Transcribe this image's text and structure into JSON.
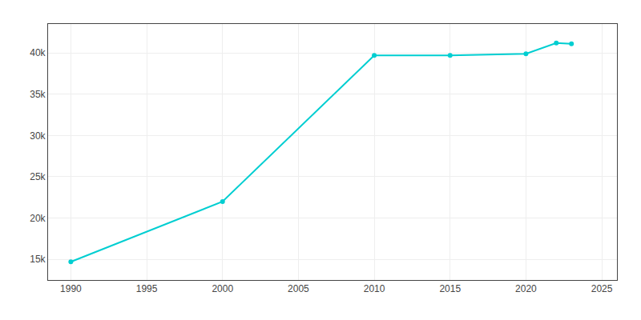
{
  "chart_data": {
    "type": "line",
    "x": [
      1990,
      2000,
      2010,
      2015,
      2020,
      2022,
      2023
    ],
    "values": [
      14700,
      22000,
      39700,
      39700,
      39900,
      41200,
      41100
    ],
    "color": "#00CED1",
    "marker": "circle",
    "line_style": "solid",
    "xlim": [
      1988.5,
      2026
    ],
    "xticks": [
      1990,
      1995,
      2000,
      2005,
      2010,
      2015,
      2020,
      2025
    ],
    "ylim": [
      12500,
      43500
    ],
    "yticks": [
      {
        "value": 15000,
        "label": "15k"
      },
      {
        "value": 20000,
        "label": "20k"
      },
      {
        "value": 25000,
        "label": "25k"
      },
      {
        "value": 30000,
        "label": "30k"
      },
      {
        "value": 35000,
        "label": "35k"
      },
      {
        "value": 40000,
        "label": "40k"
      }
    ],
    "grid": true
  }
}
